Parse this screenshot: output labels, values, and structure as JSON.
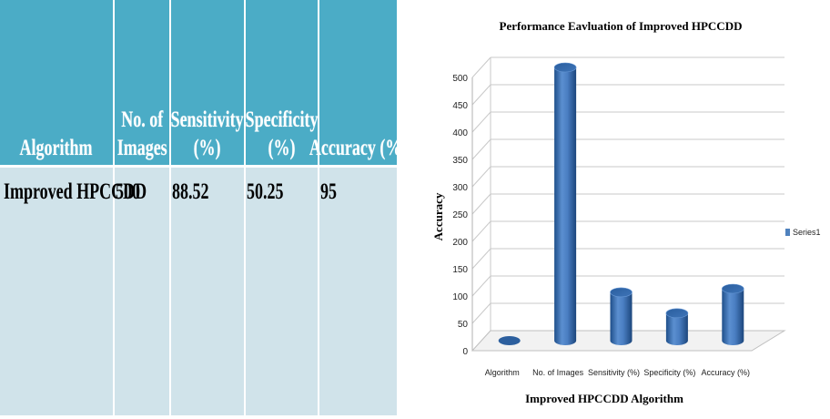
{
  "table": {
    "headers": [
      [
        "Algorithm"
      ],
      [
        "No. of",
        "Images"
      ],
      [
        "Sensitivity",
        "(%)"
      ],
      [
        "Specificity",
        "(%)"
      ],
      [
        "Accuracy (%)"
      ]
    ],
    "row": [
      "Improved HPCCDD",
      "500",
      "88.52",
      "50.25",
      "95"
    ],
    "colors": {
      "header": "#4bacc6",
      "body": "#d0e3ea"
    }
  },
  "chart_data": {
    "type": "bar",
    "title": "Performance Eavluation of Improved HPCCDD",
    "xlabel": "Improved HPCCDD Algorithm",
    "ylabel": "Accuracy",
    "categories": [
      "Algorithm",
      "No. of Images",
      "Sensitivity (%)",
      "Specificity (%)",
      "Accuracy (%)"
    ],
    "series": [
      {
        "name": "Series1",
        "values": [
          0,
          500,
          88.52,
          50.25,
          95
        ],
        "color": "#4f81bd"
      }
    ],
    "yticks": [
      "0",
      "50",
      "100",
      "150",
      "200",
      "250",
      "300",
      "350",
      "400",
      "450",
      "500"
    ],
    "ylim": [
      0,
      500
    ],
    "grid": true,
    "legend": "right",
    "style": "3d-cylinder"
  }
}
